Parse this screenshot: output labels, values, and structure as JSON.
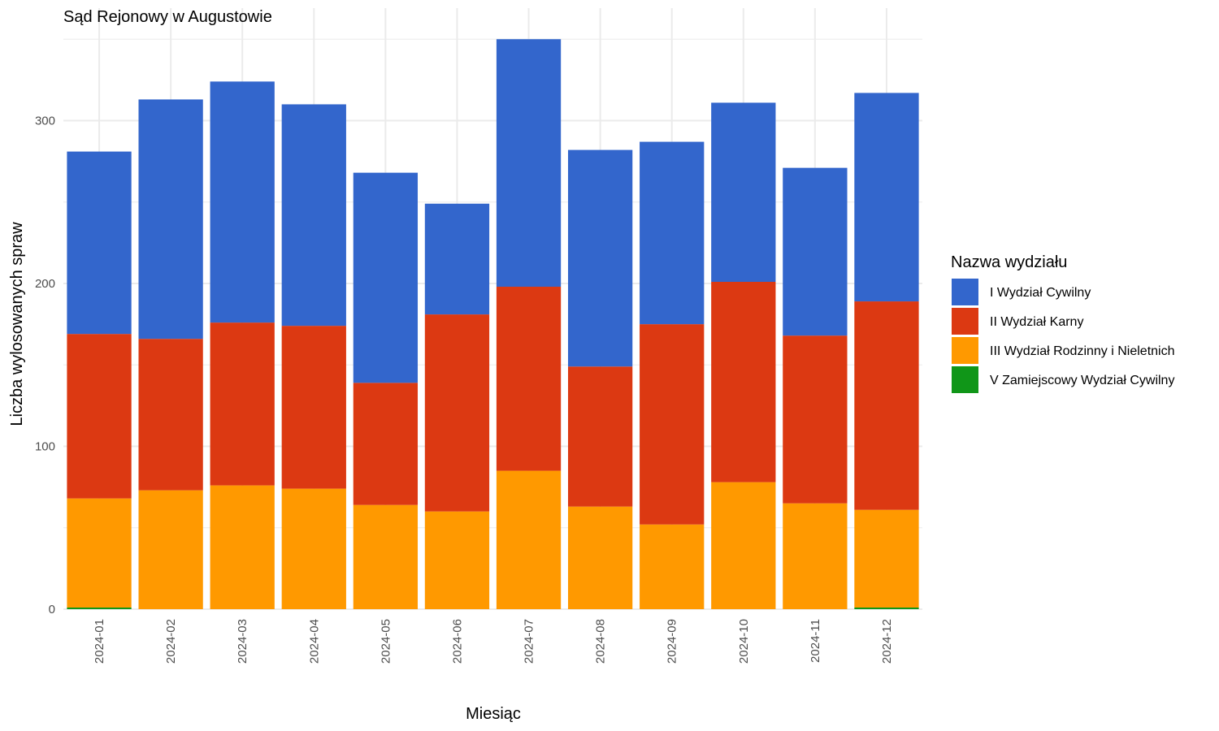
{
  "chart_data": {
    "type": "bar",
    "stacked": true,
    "title": "Sąd Rejonowy w Augustowie",
    "xlabel": "Miesiąc",
    "ylabel": "Liczba wylosowanych spraw",
    "ylim": [
      0,
      350
    ],
    "yticks": [
      0,
      100,
      200,
      300
    ],
    "grid": true,
    "legend_position": "right",
    "legend_title": "Nazwa wydziału",
    "categories": [
      "2024-01",
      "2024-02",
      "2024-03",
      "2024-04",
      "2024-05",
      "2024-06",
      "2024-07",
      "2024-08",
      "2024-09",
      "2024-10",
      "2024-11",
      "2024-12"
    ],
    "series": [
      {
        "name": "V Zamiejscowy Wydział Cywilny",
        "color": "#109618",
        "values": [
          1,
          0,
          0,
          0,
          0,
          0,
          0,
          0,
          0,
          0,
          0,
          1
        ]
      },
      {
        "name": "III Wydział Rodzinny i Nieletnich",
        "color": "#FF9900",
        "values": [
          67,
          73,
          76,
          74,
          64,
          60,
          85,
          63,
          52,
          78,
          65,
          60
        ]
      },
      {
        "name": "II Wydział Karny",
        "color": "#DC3912",
        "values": [
          101,
          93,
          100,
          100,
          75,
          121,
          113,
          86,
          123,
          123,
          103,
          128
        ]
      },
      {
        "name": "I Wydział Cywilny",
        "color": "#3366CC",
        "values": [
          112,
          147,
          148,
          136,
          129,
          68,
          152,
          133,
          112,
          110,
          103,
          128
        ]
      }
    ],
    "legend_order": [
      "I Wydział Cywilny",
      "II Wydział Karny",
      "III Wydział Rodzinny i Nieletnich",
      "V Zamiejscowy Wydział Cywilny"
    ]
  }
}
